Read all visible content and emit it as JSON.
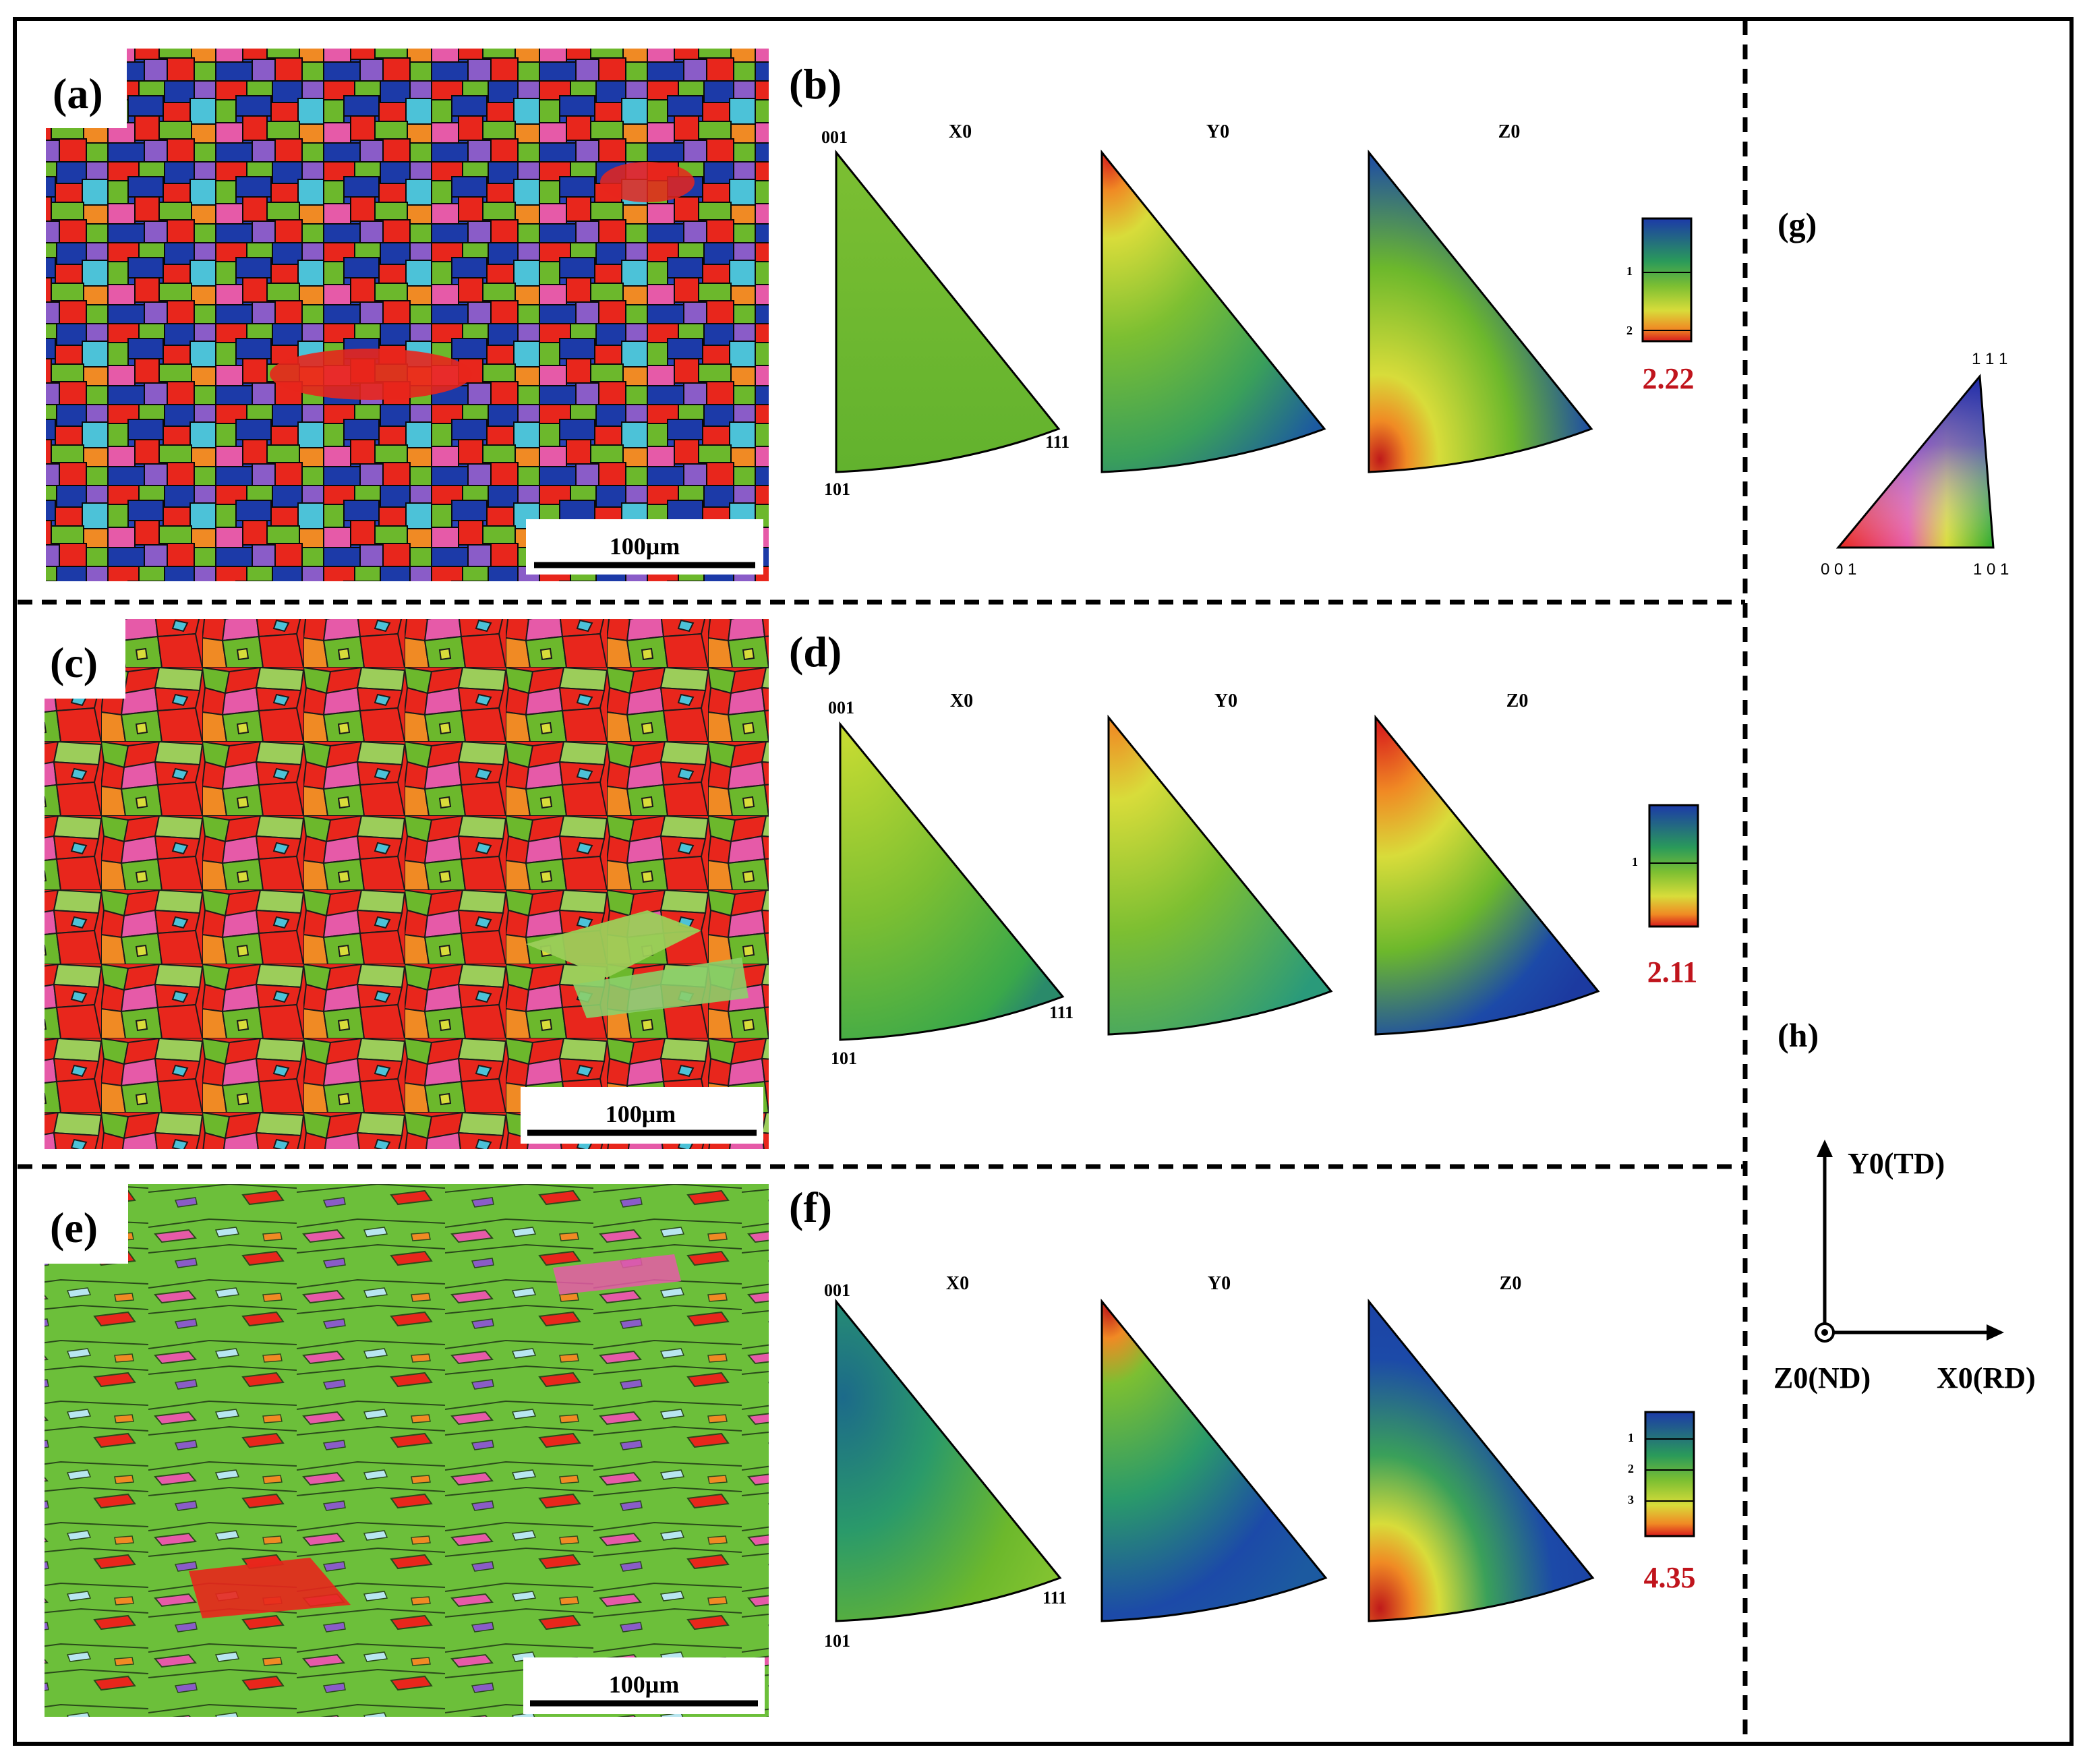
{
  "panels": {
    "a": {
      "label": "(a)",
      "scale": "100μm"
    },
    "b": {
      "label": "(b)",
      "max": "2.22",
      "ticks": [
        "1",
        "2"
      ]
    },
    "c": {
      "label": "(c)",
      "scale": "100μm"
    },
    "d": {
      "label": "(d)",
      "max": "2.11",
      "ticks": [
        "1"
      ]
    },
    "e": {
      "label": "(e)",
      "scale": "100μm"
    },
    "f": {
      "label": "(f)",
      "max": "4.35",
      "ticks": [
        "1",
        "2",
        "3"
      ]
    },
    "g": {
      "label": "(g)"
    },
    "h": {
      "label": "(h)"
    }
  },
  "ipf": {
    "titles": [
      "X0",
      "Y0",
      "Z0"
    ],
    "corner_001": "001",
    "corner_101": "101",
    "corner_111": "111"
  },
  "key": {
    "c001": "0 0 1",
    "c101": "1 0 1",
    "c111": "1 1 1"
  },
  "axes": {
    "y": "Y0(TD)",
    "x": "X0(RD)",
    "z": "Z0(ND)"
  },
  "colors": {
    "red": "#e8261c",
    "green": "#6cb82c",
    "blue": "#1c3aa8",
    "light_green": "#9ccd5a",
    "pink": "#e65aa8",
    "cyan": "#4cc2d8",
    "violet": "#8a5cc8",
    "orange": "#f08a24",
    "yellow": "#d8dc3a",
    "max_value": "#c0141c"
  }
}
